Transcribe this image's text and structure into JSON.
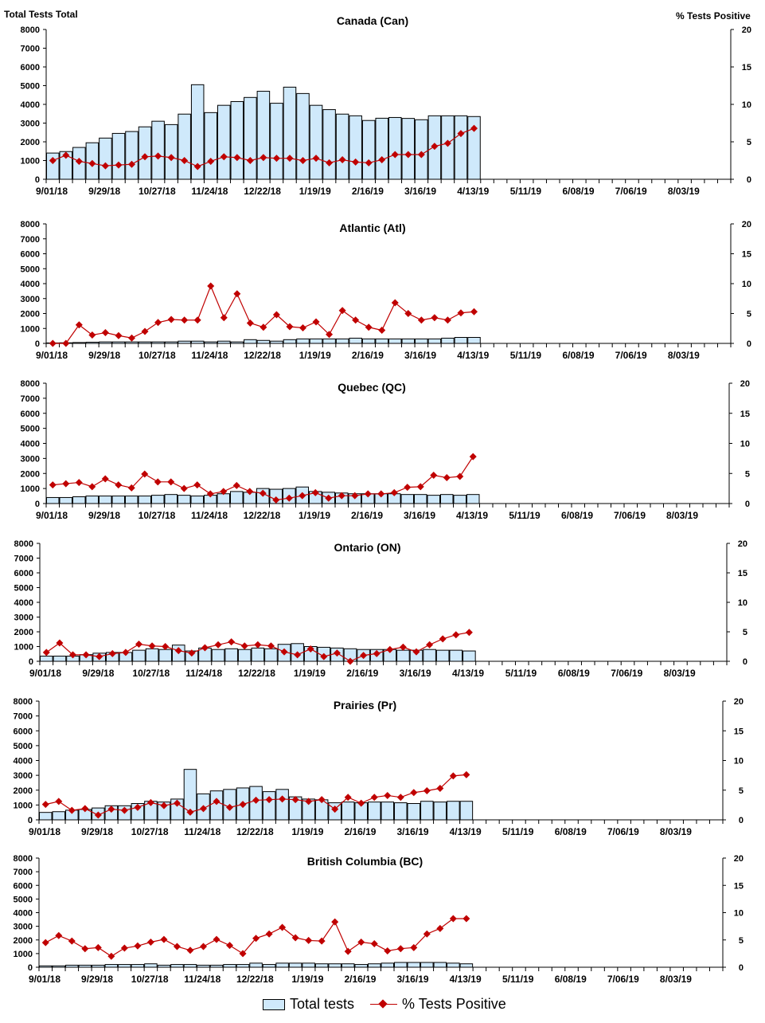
{
  "header": {
    "left_axis_title": "Total Tests Total",
    "right_axis_title": "% Tests Positive"
  },
  "legend": {
    "bars": "Total tests",
    "line": "% Tests Positive"
  },
  "colors": {
    "bar_fill": "#cfe9fb",
    "bar_stroke": "#000000",
    "line": "#c00000"
  },
  "chart_data": [
    {
      "type": "bar+line",
      "title": "Canada (Can)",
      "ylim": [
        0,
        8000
      ],
      "y2lim": [
        0,
        20
      ],
      "yticks": [
        0,
        1000,
        2000,
        3000,
        4000,
        5000,
        6000,
        7000,
        8000
      ],
      "y2ticks": [
        0,
        5,
        10,
        15,
        20
      ],
      "xticklabels": [
        "9/01/18",
        "9/29/18",
        "10/27/18",
        "11/24/18",
        "12/22/18",
        "1/19/19",
        "2/16/19",
        "3/16/19",
        "4/13/19",
        "5/11/19",
        "6/08/19",
        "7/06/19",
        "8/03/19"
      ],
      "total_tests": [
        1400,
        1480,
        1700,
        1950,
        2200,
        2450,
        2550,
        2800,
        3100,
        2920,
        3480,
        5050,
        3560,
        3950,
        4150,
        4370,
        4700,
        4060,
        4920,
        4580,
        3950,
        3720,
        3480,
        3390,
        3140,
        3260,
        3300,
        3250,
        3180,
        3390,
        3390,
        3390,
        3350
      ],
      "pct_positive": [
        2.5,
        3.2,
        2.4,
        2.1,
        1.8,
        1.9,
        2.0,
        3.0,
        3.1,
        2.9,
        2.5,
        1.7,
        2.4,
        3.0,
        2.9,
        2.5,
        2.9,
        2.8,
        2.8,
        2.5,
        2.8,
        2.2,
        2.6,
        2.3,
        2.2,
        2.6,
        3.3,
        3.3,
        3.3,
        4.4,
        4.8,
        6.1,
        6.8
      ]
    },
    {
      "type": "bar+line",
      "title": "Atlantic (Atl)",
      "ylim": [
        0,
        8000
      ],
      "y2lim": [
        0,
        20
      ],
      "yticks": [
        0,
        1000,
        2000,
        3000,
        4000,
        5000,
        6000,
        7000,
        8000
      ],
      "y2ticks": [
        0,
        5,
        10,
        15,
        20
      ],
      "xticklabels": [
        "9/01/18",
        "9/29/18",
        "10/27/18",
        "11/24/18",
        "12/22/18",
        "1/19/19",
        "2/16/19",
        "3/16/19",
        "4/13/19",
        "5/11/19",
        "6/08/19",
        "7/06/19",
        "8/03/19"
      ],
      "total_tests": [
        30,
        40,
        60,
        80,
        100,
        100,
        100,
        100,
        100,
        100,
        150,
        150,
        100,
        150,
        100,
        250,
        200,
        150,
        250,
        300,
        300,
        300,
        300,
        350,
        300,
        300,
        300,
        300,
        300,
        300,
        350,
        400,
        400
      ],
      "pct_positive": [
        0,
        0,
        3.1,
        1.4,
        1.8,
        1.3,
        0.9,
        2.0,
        3.5,
        4.0,
        3.9,
        3.9,
        9.6,
        4.3,
        8.3,
        3.4,
        2.7,
        4.8,
        2.8,
        2.6,
        3.6,
        1.5,
        5.5,
        3.9,
        2.7,
        2.2,
        6.8,
        5.0,
        3.9,
        4.3,
        3.9,
        5.1,
        5.3
      ]
    },
    {
      "type": "bar+line",
      "title": "Quebec (QC)",
      "ylim": [
        0,
        8000
      ],
      "y2lim": [
        0,
        20
      ],
      "yticks": [
        0,
        1000,
        2000,
        3000,
        4000,
        5000,
        6000,
        7000,
        8000
      ],
      "y2ticks": [
        0,
        5,
        10,
        15,
        20
      ],
      "xticklabels": [
        "9/01/18",
        "9/29/18",
        "10/27/18",
        "11/24/18",
        "12/22/18",
        "1/19/19",
        "2/16/19",
        "3/16/19",
        "4/13/19",
        "5/11/19",
        "6/08/19",
        "7/06/19",
        "8/03/19"
      ],
      "total_tests": [
        400,
        400,
        450,
        500,
        500,
        500,
        500,
        500,
        550,
        600,
        550,
        500,
        550,
        650,
        800,
        750,
        1000,
        950,
        1000,
        1100,
        800,
        750,
        700,
        650,
        650,
        650,
        650,
        600,
        600,
        550,
        600,
        550,
        600
      ],
      "pct_positive": [
        3.1,
        3.3,
        3.5,
        2.8,
        4.1,
        3.1,
        2.6,
        4.9,
        3.6,
        3.6,
        2.5,
        3.1,
        1.6,
        2.0,
        3.0,
        2.0,
        1.7,
        0.6,
        0.9,
        1.3,
        1.8,
        0.9,
        1.3,
        1.3,
        1.6,
        1.6,
        1.8,
        2.7,
        2.8,
        4.7,
        4.3,
        4.5,
        7.8
      ]
    },
    {
      "type": "bar+line",
      "title": "Ontario (ON)",
      "ylim": [
        0,
        8000
      ],
      "y2lim": [
        0,
        20
      ],
      "yticks": [
        0,
        1000,
        2000,
        3000,
        4000,
        5000,
        6000,
        7000,
        8000
      ],
      "y2ticks": [
        0,
        5,
        10,
        15,
        20
      ],
      "xticklabels": [
        "9/01/18",
        "9/29/18",
        "10/27/18",
        "11/24/18",
        "12/22/18",
        "1/19/19",
        "2/16/19",
        "3/16/19",
        "4/13/19",
        "5/11/19",
        "6/08/19",
        "7/06/19",
        "8/03/19"
      ],
      "total_tests": [
        350,
        350,
        350,
        450,
        550,
        600,
        600,
        750,
        850,
        800,
        1100,
        700,
        900,
        800,
        850,
        800,
        900,
        850,
        1150,
        1200,
        1000,
        950,
        900,
        850,
        800,
        800,
        800,
        750,
        750,
        800,
        750,
        750,
        700
      ],
      "pct_positive": [
        1.5,
        3.1,
        1.1,
        1.1,
        0.8,
        1.3,
        1.5,
        2.9,
        2.6,
        2.5,
        1.8,
        1.4,
        2.3,
        2.8,
        3.3,
        2.6,
        2.8,
        2.6,
        1.6,
        1.1,
        2.1,
        0.8,
        1.4,
        0,
        1.0,
        1.3,
        2.0,
        2.4,
        1.6,
        2.8,
        3.8,
        4.5,
        4.9
      ]
    },
    {
      "type": "bar+line",
      "title": "Prairies (Pr)",
      "ylim": [
        0,
        8000
      ],
      "y2lim": [
        0,
        20
      ],
      "yticks": [
        0,
        1000,
        2000,
        3000,
        4000,
        5000,
        6000,
        7000,
        8000
      ],
      "y2ticks": [
        0,
        5,
        10,
        15,
        20
      ],
      "xticklabels": [
        "9/01/18",
        "9/29/18",
        "10/27/18",
        "11/24/18",
        "12/22/18",
        "1/19/19",
        "2/16/19",
        "3/16/19",
        "4/13/19",
        "5/11/19",
        "6/08/19",
        "7/06/19",
        "8/03/19"
      ],
      "total_tests": [
        500,
        550,
        650,
        700,
        800,
        950,
        950,
        1100,
        1250,
        1200,
        1400,
        3400,
        1750,
        1950,
        2050,
        2150,
        2250,
        1900,
        2050,
        1550,
        1400,
        1350,
        1150,
        1200,
        1150,
        1200,
        1200,
        1150,
        1100,
        1250,
        1200,
        1250,
        1250
      ],
      "pct_positive": [
        2.6,
        3.1,
        1.6,
        1.9,
        0.8,
        1.8,
        1.6,
        2.1,
        2.9,
        2.4,
        2.8,
        1.3,
        1.9,
        3.1,
        2.1,
        2.6,
        3.3,
        3.4,
        3.5,
        3.4,
        3.1,
        3.4,
        1.8,
        3.8,
        2.8,
        3.8,
        4.1,
        3.8,
        4.6,
        4.9,
        5.3,
        7.4,
        7.6
      ]
    },
    {
      "type": "bar+line",
      "title": "British Columbia (BC)",
      "ylim": [
        0,
        8000
      ],
      "y2lim": [
        0,
        20
      ],
      "yticks": [
        0,
        1000,
        2000,
        3000,
        4000,
        5000,
        6000,
        7000,
        8000
      ],
      "y2ticks": [
        0,
        5,
        10,
        15,
        20
      ],
      "xticklabels": [
        "9/01/18",
        "9/29/18",
        "10/27/18",
        "11/24/18",
        "12/22/18",
        "1/19/19",
        "2/16/19",
        "3/16/19",
        "4/13/19",
        "5/11/19",
        "6/08/19",
        "7/06/19",
        "8/03/19"
      ],
      "total_tests": [
        100,
        100,
        150,
        150,
        150,
        200,
        200,
        200,
        250,
        150,
        200,
        200,
        150,
        150,
        200,
        200,
        300,
        200,
        300,
        300,
        300,
        250,
        250,
        250,
        200,
        250,
        300,
        350,
        350,
        350,
        350,
        300,
        250
      ],
      "pct_positive": [
        4.5,
        5.8,
        4.8,
        3.4,
        3.6,
        2.0,
        3.5,
        3.9,
        4.6,
        5.1,
        3.8,
        3.1,
        3.8,
        5.1,
        4.0,
        2.5,
        5.3,
        6.1,
        7.3,
        5.4,
        4.9,
        4.8,
        8.3,
        2.9,
        4.6,
        4.3,
        3.0,
        3.4,
        3.6,
        6.1,
        7.1,
        8.9,
        8.9
      ]
    }
  ]
}
